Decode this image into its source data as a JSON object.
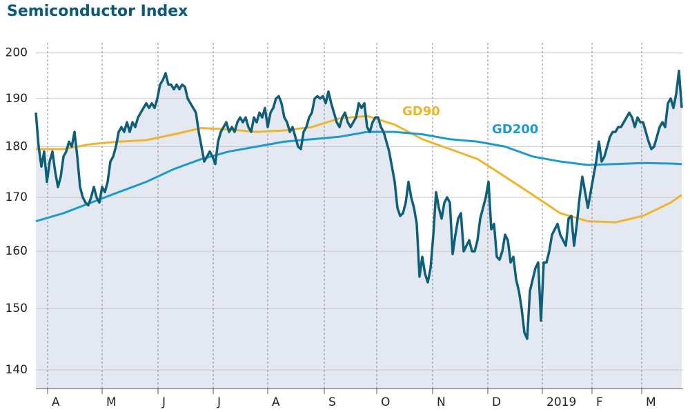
{
  "chart_data": {
    "type": "line",
    "title": "Semiconductor Index",
    "log_scale": true,
    "grid": true,
    "xlim": [
      0,
      234.5
    ],
    "ylim": [
      137.1,
      202.3
    ],
    "yticks": [
      140,
      150,
      160,
      170,
      180,
      190,
      200
    ],
    "xticks": [
      {
        "value": 4.25,
        "label": "A"
      },
      {
        "value": 24,
        "label": "M"
      },
      {
        "value": 44.25,
        "label": "J"
      },
      {
        "value": 64.25,
        "label": "J"
      },
      {
        "value": 84,
        "label": "A"
      },
      {
        "value": 104.5,
        "label": "S"
      },
      {
        "value": 123.5,
        "label": "O"
      },
      {
        "value": 143.75,
        "label": "N"
      },
      {
        "value": 163.75,
        "label": "D"
      },
      {
        "value": 183.5,
        "label": "2019"
      },
      {
        "value": 201.5,
        "label": "F"
      },
      {
        "value": 219.5,
        "label": "M"
      }
    ],
    "series": [
      {
        "color": "#0e5f7a",
        "x": [
          0,
          1,
          2,
          3,
          4,
          5,
          6,
          7,
          8,
          9,
          10,
          11,
          12,
          13,
          14,
          15,
          16,
          17,
          18,
          19,
          20,
          21,
          22,
          23,
          24,
          25,
          26,
          27,
          28,
          29,
          30,
          31,
          32,
          33,
          34,
          35,
          36,
          37,
          38,
          39,
          40,
          41,
          42,
          43,
          44,
          45,
          46,
          47,
          48,
          49,
          50,
          51,
          52,
          53,
          54,
          55,
          56,
          57,
          58,
          59,
          60,
          61,
          62,
          63,
          64,
          65,
          66,
          67,
          68,
          69,
          70,
          71,
          72,
          73,
          74,
          75,
          76,
          77,
          78,
          79,
          80,
          81,
          82,
          83,
          84,
          85,
          86,
          87,
          88,
          89,
          90,
          91,
          92,
          93,
          94,
          95,
          96,
          97,
          98,
          99,
          100,
          101,
          102,
          103,
          104,
          105,
          106,
          107,
          108,
          109,
          110,
          111,
          112,
          113,
          114,
          115,
          116,
          117,
          118,
          119,
          120,
          121,
          122,
          123,
          124,
          125,
          126,
          127,
          128,
          129,
          130,
          131,
          132,
          133,
          134,
          135,
          136,
          137,
          138,
          139,
          140,
          141,
          142,
          143,
          144,
          145,
          146,
          147,
          148,
          149,
          150,
          151,
          152,
          153,
          154,
          155,
          156,
          157,
          158,
          159,
          160,
          161,
          162,
          163,
          164,
          165,
          166,
          167,
          168,
          169,
          170,
          171,
          172,
          173,
          174,
          175,
          176,
          177,
          178,
          179,
          180,
          181,
          182,
          183,
          184,
          185,
          186,
          187,
          188,
          189,
          190,
          191,
          192,
          193,
          194,
          195,
          196,
          197,
          198,
          199,
          200,
          201,
          202,
          203,
          204,
          205,
          206,
          207,
          208,
          209,
          210,
          211,
          212,
          213,
          214,
          215,
          216,
          217,
          218,
          219,
          220,
          221,
          222,
          223,
          224,
          225,
          226,
          227,
          228,
          229,
          230,
          231,
          232,
          233,
          234
        ],
        "values": [
          187,
          180,
          176,
          179,
          173,
          177,
          179,
          175,
          172,
          174,
          178,
          179,
          181,
          180,
          183,
          178,
          172,
          170,
          169,
          168.5,
          170,
          172,
          170,
          169,
          172,
          171,
          173,
          177,
          178,
          180,
          183,
          184,
          183,
          185,
          183,
          185,
          184,
          186,
          187,
          188,
          189,
          188,
          189,
          188,
          190,
          193,
          194,
          195.5,
          193,
          193,
          192,
          193,
          192,
          193,
          192.5,
          190,
          189,
          188,
          187,
          183,
          180,
          177,
          178,
          179,
          178,
          176.5,
          181,
          183,
          184,
          185,
          183,
          184,
          183,
          185,
          186,
          185,
          186,
          184,
          183,
          186,
          185,
          187,
          186,
          188,
          184,
          187,
          188,
          190,
          190.5,
          189,
          186,
          185,
          183,
          184,
          182,
          180,
          179.5,
          183,
          184,
          186,
          187,
          190,
          190.5,
          190,
          190.5,
          189,
          191.5,
          189,
          187,
          185,
          184,
          186,
          187,
          185,
          184,
          185,
          186,
          189,
          188,
          189,
          184,
          183,
          185,
          186,
          186,
          184,
          183,
          181,
          179,
          176,
          173,
          168,
          166.5,
          167,
          169,
          173,
          170,
          168,
          165,
          155.5,
          159,
          156,
          154.5,
          157,
          163,
          171,
          168,
          166,
          169,
          170,
          169,
          159.5,
          163,
          166,
          167,
          160,
          161,
          162,
          160,
          160,
          162,
          166,
          168,
          170,
          173,
          164,
          165,
          159,
          158.5,
          160,
          163,
          162,
          158,
          159,
          155,
          153,
          150,
          146,
          145,
          153,
          155,
          157,
          158,
          148,
          158,
          158,
          160,
          163,
          164,
          165,
          163,
          162,
          161,
          166,
          166.5,
          161,
          165,
          170,
          174,
          171,
          168,
          171,
          174,
          177,
          181,
          177,
          178,
          180,
          182,
          183,
          183,
          184,
          184,
          185,
          186,
          187,
          186,
          184,
          186,
          185,
          185,
          183,
          181,
          179.5,
          180,
          182,
          184,
          185,
          184,
          189,
          190,
          188,
          191,
          196,
          188
        ]
      },
      {
        "name": "GD90",
        "color": "#f0b428",
        "x": [
          0,
          10,
          20,
          30,
          40,
          50,
          60,
          70,
          80,
          90,
          100,
          110,
          120,
          130,
          140,
          150,
          160,
          170,
          180,
          190,
          200,
          210,
          220,
          230,
          234
        ],
        "values": [
          179.5,
          179.5,
          180.5,
          181,
          181.3,
          182.5,
          183.8,
          183.5,
          183,
          183.3,
          184,
          185.8,
          186.3,
          184.5,
          181.5,
          179.5,
          177.5,
          174,
          170.5,
          167,
          165.5,
          165.3,
          166.5,
          169,
          170.5
        ]
      },
      {
        "name": "GD200",
        "color": "#1a9ad0",
        "x": [
          0,
          10,
          20,
          30,
          40,
          50,
          60,
          70,
          80,
          90,
          100,
          110,
          120,
          130,
          140,
          150,
          160,
          170,
          180,
          190,
          200,
          210,
          220,
          230,
          234
        ],
        "values": [
          165.5,
          167,
          169,
          171,
          173,
          175.5,
          177.5,
          179,
          180,
          181,
          181.5,
          182,
          183,
          183,
          182.5,
          181.5,
          181,
          180,
          178,
          177,
          176.3,
          176.5,
          176.7,
          176.6,
          176.5
        ]
      }
    ]
  }
}
